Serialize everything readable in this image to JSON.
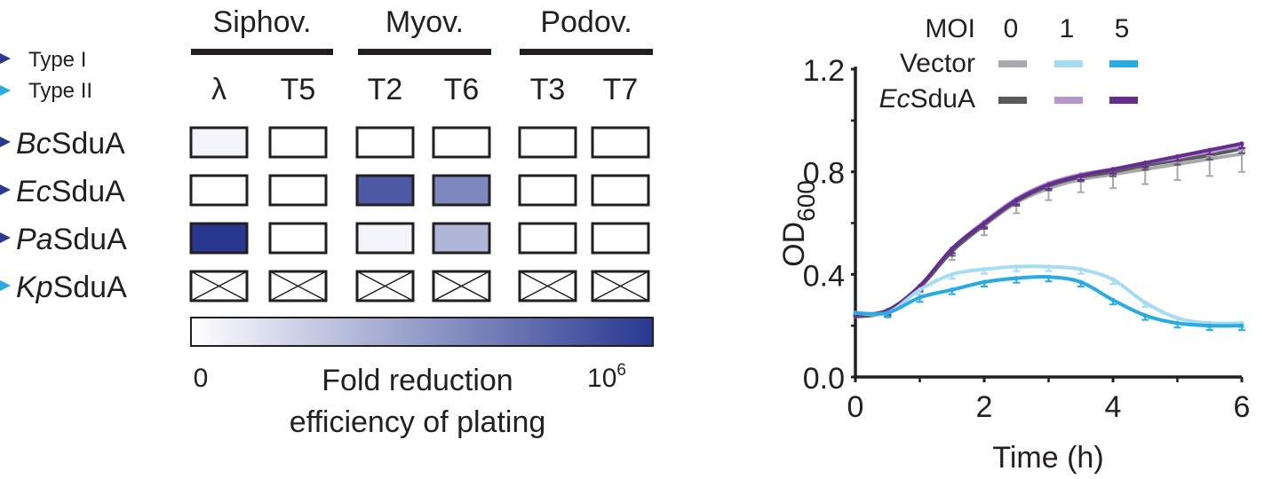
{
  "chart_data": [
    {
      "type": "heatmap",
      "title": "",
      "group_headers": [
        "Siphov.",
        "Myov.",
        "Podov."
      ],
      "columns": [
        "λ",
        "T5",
        "T2",
        "T6",
        "T3",
        "T7"
      ],
      "column_groups": [
        0,
        0,
        1,
        1,
        2,
        2
      ],
      "rows": [
        {
          "prefix": "Bc",
          "suffix": "SduA",
          "type": "Type I"
        },
        {
          "prefix": "Ec",
          "suffix": "SduA",
          "type": "Type I"
        },
        {
          "prefix": "Pa",
          "suffix": "SduA",
          "type": "Type I"
        },
        {
          "prefix": "Kp",
          "suffix": "SduA",
          "type": "Type II"
        }
      ],
      "legend_types": [
        {
          "label": "Type I",
          "color": "#2b3990"
        },
        {
          "label": "Type II",
          "color": "#29abe2"
        }
      ],
      "values_log10_fold_reduction": [
        [
          0.3,
          0,
          0,
          0,
          0,
          0
        ],
        [
          0,
          0,
          5.0,
          3.6,
          0,
          0
        ],
        [
          6,
          0,
          0.3,
          2.2,
          0,
          0
        ],
        [
          null,
          null,
          null,
          null,
          null,
          null
        ]
      ],
      "null_meaning": "crossed box",
      "colorbar": {
        "min_label": "0",
        "max_label_base": "10",
        "max_label_exp": "6",
        "range_log10": [
          0,
          6
        ],
        "title_line1": "Fold reduction",
        "title_line2": "efficiency of plating",
        "color_low": "#ffffff",
        "color_high": "#283891"
      }
    },
    {
      "type": "line",
      "xlabel": "Time (h)",
      "ylabel": "OD",
      "ylabel_sub": "600",
      "xlim": [
        0,
        6
      ],
      "ylim": [
        0,
        1.2
      ],
      "xticks": [
        "0",
        "2",
        "4",
        "6"
      ],
      "yticks": [
        "0.0",
        "0.4",
        "0.8",
        "1.2"
      ],
      "legend": {
        "header": "MOI",
        "moi_values": [
          "0",
          "1",
          "5"
        ],
        "row_labels": [
          {
            "prefix": "",
            "suffix": "Vector"
          },
          {
            "prefix": "Ec",
            "suffix": "SduA"
          }
        ],
        "placement": "top"
      },
      "x": [
        0,
        0.5,
        1,
        1.5,
        2,
        2.5,
        3,
        3.5,
        4,
        4.5,
        5,
        5.5,
        6
      ],
      "series": [
        {
          "name": "Vector MOI 0",
          "color": "#a7a9ac",
          "values": [
            0.24,
            0.26,
            0.35,
            0.49,
            0.59,
            0.68,
            0.735,
            0.77,
            0.79,
            0.81,
            0.83,
            0.85,
            0.87
          ]
        },
        {
          "name": "EcSduA MOI 0",
          "color": "#58595b",
          "values": [
            0.235,
            0.255,
            0.35,
            0.49,
            0.595,
            0.685,
            0.745,
            0.78,
            0.8,
            0.825,
            0.845,
            0.865,
            0.89
          ]
        },
        {
          "name": "EcSduA MOI 1",
          "color": "#b597cc",
          "values": [
            0.24,
            0.26,
            0.355,
            0.5,
            0.605,
            0.695,
            0.755,
            0.79,
            0.81,
            0.835,
            0.855,
            0.88,
            0.9
          ]
        },
        {
          "name": "EcSduA MOI 5",
          "color": "#662d91",
          "values": [
            0.24,
            0.26,
            0.355,
            0.5,
            0.6,
            0.69,
            0.75,
            0.785,
            0.81,
            0.835,
            0.86,
            0.885,
            0.91
          ]
        },
        {
          "name": "Vector MOI 1",
          "color": "#a6dcf3",
          "values": [
            0.25,
            0.25,
            0.34,
            0.4,
            0.42,
            0.43,
            0.43,
            0.42,
            0.38,
            0.29,
            0.23,
            0.21,
            0.21
          ]
        },
        {
          "name": "Vector MOI 5",
          "color": "#29abe2",
          "values": [
            0.25,
            0.25,
            0.31,
            0.34,
            0.37,
            0.385,
            0.39,
            0.37,
            0.3,
            0.24,
            0.21,
            0.2,
            0.2
          ]
        }
      ]
    }
  ]
}
